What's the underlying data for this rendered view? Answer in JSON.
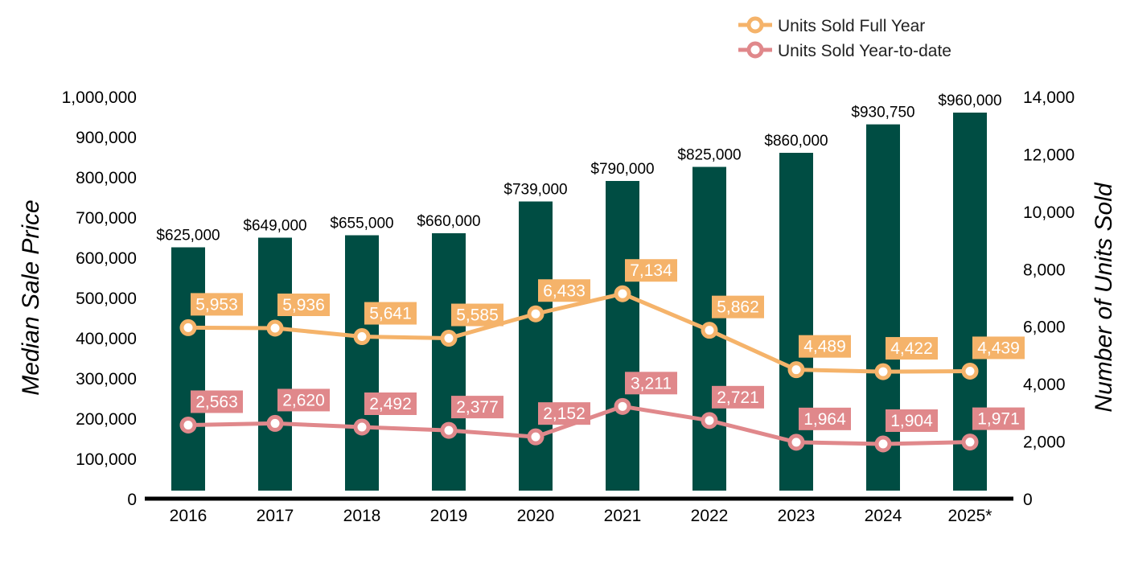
{
  "chart_data": {
    "type": "bar",
    "categories": [
      "2016",
      "2017",
      "2018",
      "2019",
      "2020",
      "2021",
      "2022",
      "2023",
      "2024",
      "2025*"
    ],
    "series": [
      {
        "name": "",
        "type": "bar",
        "axis": "left",
        "color": "#004d43",
        "values": [
          625000,
          649000,
          655000,
          660000,
          739000,
          790000,
          825000,
          860000,
          930750,
          960000
        ],
        "labels": [
          "$625,000",
          "$649,000",
          "$655,000",
          "$660,000",
          "$739,000",
          "$790,000",
          "$825,000",
          "$860,000",
          "$930,750",
          "$960,000"
        ]
      },
      {
        "name": "Units Sold Full Year",
        "type": "line",
        "axis": "right",
        "color": "#f5b36a",
        "values": [
          5953,
          5936,
          5641,
          5585,
          6433,
          7134,
          5862,
          4489,
          4422,
          4439
        ],
        "labels": [
          "5,953",
          "5,936",
          "5,641",
          "5,585",
          "6,433",
          "7,134",
          "5,862",
          "4,489",
          "4,422",
          "4,439"
        ]
      },
      {
        "name": "Units Sold Year-to-date",
        "type": "line",
        "axis": "right",
        "color": "#e0888b",
        "values": [
          2563,
          2620,
          2492,
          2377,
          2152,
          3211,
          2721,
          1964,
          1904,
          1971
        ],
        "labels": [
          "2,563",
          "2,620",
          "2,492",
          "2,377",
          "2,152",
          "3,211",
          "2,721",
          "1,964",
          "1,904",
          "1,971"
        ]
      }
    ],
    "ylabel": "Median Sale Price",
    "y2label": "Number of Units Sold",
    "ylim": [
      0,
      1000000
    ],
    "y2lim": [
      0,
      14000
    ],
    "yticks": [
      "0",
      "100,000",
      "200,000",
      "300,000",
      "400,000",
      "500,000",
      "600,000",
      "700,000",
      "800,000",
      "900,000",
      "1,000,000"
    ],
    "y2ticks": [
      "0",
      "2,000",
      "4,000",
      "6,000",
      "8,000",
      "10,000",
      "12,000",
      "14,000"
    ],
    "legend_position": "top-right",
    "grid": false
  }
}
